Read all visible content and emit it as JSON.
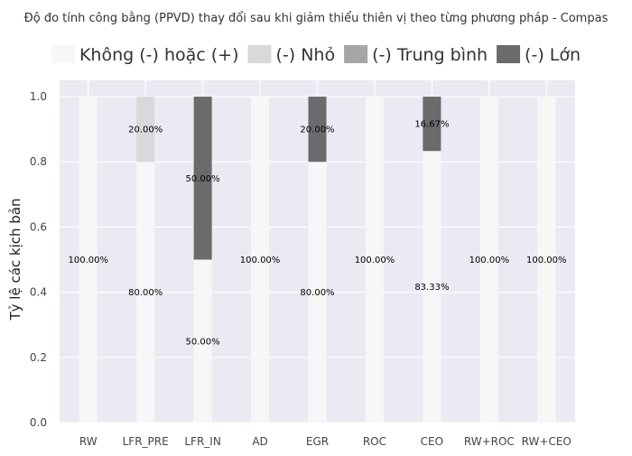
{
  "chart_data": {
    "type": "bar",
    "stacked": true,
    "title": "Độ đo tính công bằng (PPVD) thay đổi sau khi giảm thiểu thiên vị theo từng phương pháp - Compas",
    "xlabel": "",
    "ylabel": "Tỷ lệ các kịch bản",
    "ylim": [
      0,
      1.05
    ],
    "yticks": [
      "0.0",
      "0.2",
      "0.4",
      "0.6",
      "0.8",
      "1.0"
    ],
    "grid": true,
    "legend_position": "top",
    "categories": [
      "RW",
      "LFR_PRE",
      "LFR_IN",
      "AD",
      "EGR",
      "ROC",
      "CEO",
      "RW+ROC",
      "RW+CEO"
    ],
    "series": [
      {
        "name": "Không (-) hoặc (+)",
        "color": "#f7f7f7",
        "values": [
          1.0,
          0.8,
          0.5,
          1.0,
          0.8,
          1.0,
          0.8333,
          1.0,
          1.0
        ],
        "labels": [
          "100.00%",
          "80.00%",
          "50.00%",
          "100.00%",
          "80.00%",
          "100.00%",
          "83.33%",
          "100.00%",
          "100.00%"
        ]
      },
      {
        "name": "(-) Nhỏ",
        "color": "#d9d9d9",
        "values": [
          0,
          0.2,
          0,
          0,
          0,
          0,
          0,
          0,
          0
        ],
        "labels": [
          "",
          "20.00%",
          "",
          "",
          "",
          "",
          "",
          "",
          ""
        ]
      },
      {
        "name": "(-) Trung bình",
        "color": "#a6a6a6",
        "values": [
          0,
          0,
          0,
          0,
          0,
          0,
          0,
          0,
          0
        ],
        "labels": [
          "",
          "",
          "",
          "",
          "",
          "",
          "",
          "",
          ""
        ]
      },
      {
        "name": "(-) Lớn",
        "color": "#6b6b6b",
        "values": [
          0,
          0,
          0.5,
          0,
          0.2,
          0,
          0.1667,
          0,
          0
        ],
        "labels": [
          "",
          "",
          "50.00%",
          "",
          "20.00%",
          "",
          "16.67%",
          "",
          ""
        ]
      }
    ],
    "colors": {
      "plot_background": "#eaeaf2",
      "grid": "#ffffff"
    }
  }
}
